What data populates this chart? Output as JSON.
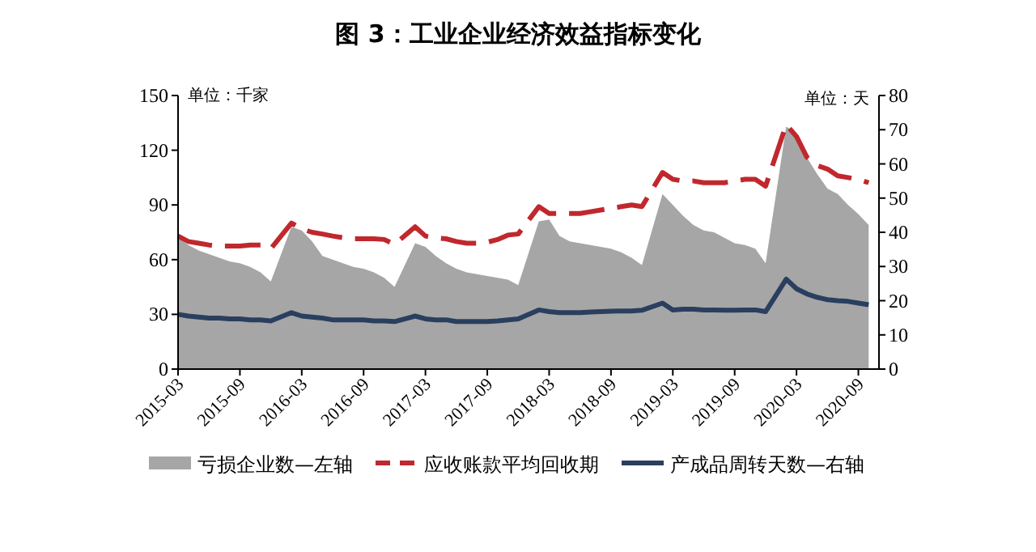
{
  "chart_data": {
    "type": "area",
    "title": "图 3：工业企业经济效益指标变化",
    "ylabel": "单位：千家",
    "y2label": "单位：天",
    "x": [
      "2015-03",
      "2015-04",
      "2015-05",
      "2015-06",
      "2015-07",
      "2015-08",
      "2015-09",
      "2015-10",
      "2015-11",
      "2015-12",
      "2016-02",
      "2016-03",
      "2016-04",
      "2016-05",
      "2016-06",
      "2016-07",
      "2016-08",
      "2016-09",
      "2016-10",
      "2016-11",
      "2016-12",
      "2017-02",
      "2017-03",
      "2017-04",
      "2017-05",
      "2017-06",
      "2017-07",
      "2017-08",
      "2017-09",
      "2017-10",
      "2017-11",
      "2017-12",
      "2018-02",
      "2018-03",
      "2018-04",
      "2018-05",
      "2018-06",
      "2018-07",
      "2018-08",
      "2018-09",
      "2018-10",
      "2018-11",
      "2018-12",
      "2019-02",
      "2019-03",
      "2019-04",
      "2019-05",
      "2019-06",
      "2019-07",
      "2019-08",
      "2019-09",
      "2019-10",
      "2019-11",
      "2019-12",
      "2020-02",
      "2020-03",
      "2020-04",
      "2020-05",
      "2020-06",
      "2020-07",
      "2020-08",
      "2020-09",
      "2020-10"
    ],
    "series": [
      {
        "name": "亏损企业数—左轴",
        "color": "#a6a6a6",
        "values": [
          72,
          68,
          65,
          63,
          61,
          59,
          58,
          56,
          53,
          48,
          78,
          76,
          70,
          62,
          60,
          58,
          56,
          55,
          53,
          50,
          45,
          69,
          67,
          62,
          58,
          55,
          53,
          52,
          51,
          50,
          49,
          46,
          81,
          82,
          73,
          70,
          69,
          68,
          67,
          66,
          64,
          61,
          57,
          96,
          90,
          84,
          79,
          76,
          75,
          72,
          69,
          68,
          66,
          58,
          133,
          129,
          116,
          107,
          99,
          96,
          90,
          85,
          79
        ]
      },
      {
        "name": "应收账款平均回收期",
        "type": "line",
        "axis": "y2",
        "line_style": "dashed",
        "color": "#c0282d",
        "values": [
          38.9,
          37.3,
          36.8,
          36.3,
          36,
          36,
          36,
          36.3,
          36.3,
          35.2,
          42.7,
          41,
          40,
          39.5,
          38.9,
          38.4,
          38.1,
          38.1,
          38.1,
          37.9,
          36.5,
          41.6,
          38.9,
          38.4,
          38.1,
          37.3,
          36.8,
          36.8,
          37.1,
          37.9,
          39.2,
          39.5,
          47.5,
          45.5,
          45.5,
          45.5,
          45.5,
          46,
          46.5,
          47,
          47.5,
          48,
          47.5,
          57.5,
          55.5,
          55,
          55,
          54.5,
          54.5,
          54.5,
          55,
          55.5,
          55.5,
          53.5,
          71.5,
          68,
          62,
          59.5,
          58.5,
          56.5,
          56,
          55.5,
          54.5
        ]
      },
      {
        "name": "产成品周转天数—右轴",
        "type": "line",
        "axis": "y2",
        "line_style": "solid",
        "color": "#2a3f5f",
        "values": [
          16,
          15.5,
          15.2,
          14.9,
          14.9,
          14.7,
          14.7,
          14.4,
          14.4,
          14.1,
          16.5,
          15.5,
          15.2,
          14.9,
          14.4,
          14.4,
          14.4,
          14.4,
          14.1,
          14.1,
          13.9,
          15.5,
          14.7,
          14.4,
          14.4,
          13.9,
          13.9,
          13.9,
          13.9,
          14.1,
          14.4,
          14.7,
          17.3,
          16.8,
          16.5,
          16.5,
          16.5,
          16.7,
          16.8,
          16.9,
          17,
          17,
          17.2,
          19.3,
          17.3,
          17.5,
          17.5,
          17.3,
          17.3,
          17.2,
          17.2,
          17.3,
          17.3,
          16.8,
          26.3,
          23.5,
          22,
          21,
          20.3,
          20,
          19.8,
          19.3,
          18.8
        ]
      }
    ],
    "xlim": [
      "2015-03",
      "2020-11"
    ],
    "xticks": [
      "2015-03",
      "2015-09",
      "2016-03",
      "2016-09",
      "2017-03",
      "2017-09",
      "2018-03",
      "2018-09",
      "2019-03",
      "2019-09",
      "2020-03",
      "2020-09"
    ],
    "ylim": [
      0,
      150
    ],
    "yticks": [
      0,
      30,
      60,
      90,
      120,
      150
    ],
    "y2lim": [
      0,
      80
    ],
    "y2ticks": [
      0,
      10,
      20,
      30,
      40,
      50,
      60,
      70,
      80
    ],
    "grid": false,
    "legend": "bottom"
  }
}
